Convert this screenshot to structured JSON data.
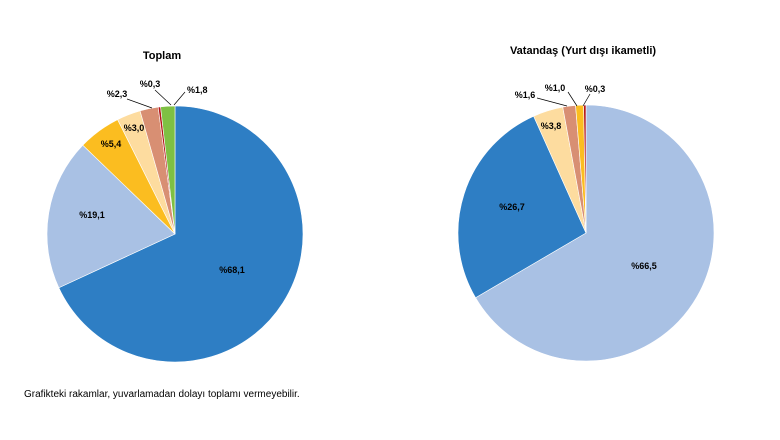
{
  "footnote": "Grafikteki rakamlar, yuvarlamadan dolayı toplamı vermeyebilir.",
  "chart_data": [
    {
      "type": "pie",
      "title": "Toplam",
      "start": "12 o'clock",
      "direction": "clockwise",
      "slices": [
        {
          "label": "%68,1",
          "value": 68.1,
          "color": "#2e7ec4"
        },
        {
          "label": "%19,1",
          "value": 19.1,
          "color": "#a9c1e4"
        },
        {
          "label": "%5,4",
          "value": 5.4,
          "color": "#fbbd20"
        },
        {
          "label": "%3,0",
          "value": 3.0,
          "color": "#fddc9f"
        },
        {
          "label": "%2,3",
          "value": 2.3,
          "color": "#d88f73"
        },
        {
          "label": "%0,3",
          "value": 0.3,
          "color": "#b4151b"
        },
        {
          "label": "%1,8",
          "value": 1.8,
          "color": "#7ec043"
        }
      ]
    },
    {
      "type": "pie",
      "title": "Vatandaş (Yurt dışı ikametli)",
      "start": "12 o'clock",
      "direction": "clockwise",
      "slices": [
        {
          "label": "%66,5",
          "value": 66.5,
          "color": "#a9c1e4"
        },
        {
          "label": "%26,7",
          "value": 26.7,
          "color": "#2e7ec4"
        },
        {
          "label": "%3,8",
          "value": 3.8,
          "color": "#fddc9f"
        },
        {
          "label": "%1,6",
          "value": 1.6,
          "color": "#d88f73"
        },
        {
          "label": "%1,0",
          "value": 1.0,
          "color": "#fbbd20"
        },
        {
          "label": "%0,3",
          "value": 0.3,
          "color": "#b4151b"
        }
      ]
    }
  ]
}
